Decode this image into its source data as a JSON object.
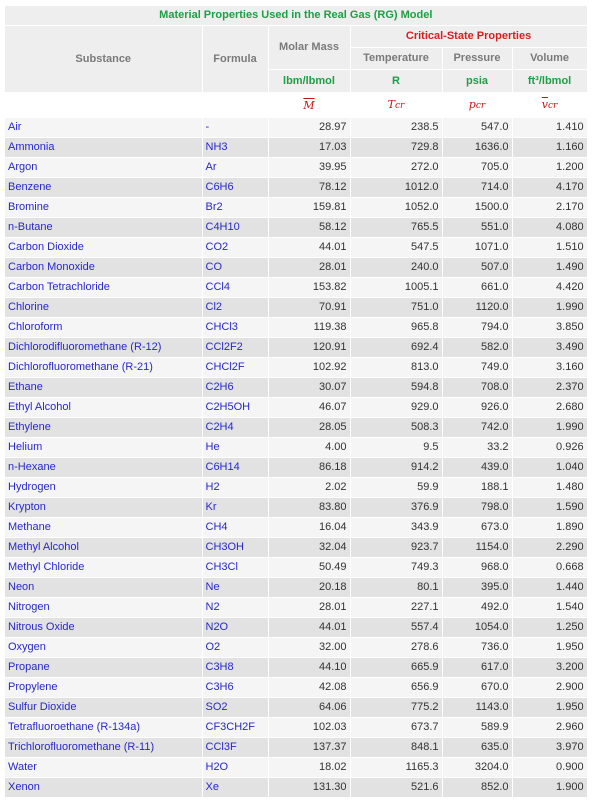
{
  "title": "Material Properties Used in the Real Gas (RG) Model",
  "headers": {
    "substance": "Substance",
    "formula": "Formula",
    "molar_mass": "Molar Mass",
    "critical_state": "Critical-State Properties",
    "temperature": "Temperature",
    "pressure": "Pressure",
    "volume": "Volume"
  },
  "units": {
    "molar_mass": "lbm/lbmol",
    "temperature": "R",
    "pressure": "psia",
    "volume": "ft³/lbmol"
  },
  "symbols": {
    "molar_mass": "M",
    "temperature": "T",
    "pressure": "p",
    "volume": "v",
    "subscript": "cr"
  },
  "rows": [
    {
      "name": "Air",
      "formula": "-",
      "mass": "28.97",
      "t": "238.5",
      "p": "547.0",
      "v": "1.410"
    },
    {
      "name": "Ammonia",
      "formula": "NH3",
      "mass": "17.03",
      "t": "729.8",
      "p": "1636.0",
      "v": "1.160"
    },
    {
      "name": "Argon",
      "formula": "Ar",
      "mass": "39.95",
      "t": "272.0",
      "p": "705.0",
      "v": "1.200"
    },
    {
      "name": "Benzene",
      "formula": "C6H6",
      "mass": "78.12",
      "t": "1012.0",
      "p": "714.0",
      "v": "4.170"
    },
    {
      "name": "Bromine",
      "formula": "Br2",
      "mass": "159.81",
      "t": "1052.0",
      "p": "1500.0",
      "v": "2.170"
    },
    {
      "name": "n-Butane",
      "formula": "C4H10",
      "mass": "58.12",
      "t": "765.5",
      "p": "551.0",
      "v": "4.080"
    },
    {
      "name": "Carbon Dioxide",
      "formula": "CO2",
      "mass": "44.01",
      "t": "547.5",
      "p": "1071.0",
      "v": "1.510"
    },
    {
      "name": "Carbon Monoxide",
      "formula": "CO",
      "mass": "28.01",
      "t": "240.0",
      "p": "507.0",
      "v": "1.490"
    },
    {
      "name": "Carbon Tetrachloride",
      "formula": "CCl4",
      "mass": "153.82",
      "t": "1005.1",
      "p": "661.0",
      "v": "4.420"
    },
    {
      "name": "Chlorine",
      "formula": "Cl2",
      "mass": "70.91",
      "t": "751.0",
      "p": "1120.0",
      "v": "1.990"
    },
    {
      "name": "Chloroform",
      "formula": "CHCl3",
      "mass": "119.38",
      "t": "965.8",
      "p": "794.0",
      "v": "3.850"
    },
    {
      "name": "Dichlorodifluoromethane (R-12)",
      "formula": "CCl2F2",
      "mass": "120.91",
      "t": "692.4",
      "p": "582.0",
      "v": "3.490"
    },
    {
      "name": "Dichlorofluoromethane (R-21)",
      "formula": "CHCl2F",
      "mass": "102.92",
      "t": "813.0",
      "p": "749.0",
      "v": "3.160"
    },
    {
      "name": "Ethane",
      "formula": "C2H6",
      "mass": "30.07",
      "t": "594.8",
      "p": "708.0",
      "v": "2.370"
    },
    {
      "name": "Ethyl Alcohol",
      "formula": "C2H5OH",
      "mass": "46.07",
      "t": "929.0",
      "p": "926.0",
      "v": "2.680"
    },
    {
      "name": "Ethylene",
      "formula": "C2H4",
      "mass": "28.05",
      "t": "508.3",
      "p": "742.0",
      "v": "1.990"
    },
    {
      "name": "Helium",
      "formula": "He",
      "mass": "4.00",
      "t": "9.5",
      "p": "33.2",
      "v": "0.926"
    },
    {
      "name": "n-Hexane",
      "formula": "C6H14",
      "mass": "86.18",
      "t": "914.2",
      "p": "439.0",
      "v": "1.040"
    },
    {
      "name": "Hydrogen",
      "formula": "H2",
      "mass": "2.02",
      "t": "59.9",
      "p": "188.1",
      "v": "1.480"
    },
    {
      "name": "Krypton",
      "formula": "Kr",
      "mass": "83.80",
      "t": "376.9",
      "p": "798.0",
      "v": "1.590"
    },
    {
      "name": "Methane",
      "formula": "CH4",
      "mass": "16.04",
      "t": "343.9",
      "p": "673.0",
      "v": "1.890"
    },
    {
      "name": "Methyl Alcohol",
      "formula": "CH3OH",
      "mass": "32.04",
      "t": "923.7",
      "p": "1154.0",
      "v": "2.290"
    },
    {
      "name": "Methyl Chloride",
      "formula": "CH3Cl",
      "mass": "50.49",
      "t": "749.3",
      "p": "968.0",
      "v": "0.668"
    },
    {
      "name": "Neon",
      "formula": "Ne",
      "mass": "20.18",
      "t": "80.1",
      "p": "395.0",
      "v": "1.440"
    },
    {
      "name": "Nitrogen",
      "formula": "N2",
      "mass": "28.01",
      "t": "227.1",
      "p": "492.0",
      "v": "1.540"
    },
    {
      "name": "Nitrous Oxide",
      "formula": "N2O",
      "mass": "44.01",
      "t": "557.4",
      "p": "1054.0",
      "v": "1.250"
    },
    {
      "name": "Oxygen",
      "formula": "O2",
      "mass": "32.00",
      "t": "278.6",
      "p": "736.0",
      "v": "1.950"
    },
    {
      "name": "Propane",
      "formula": "C3H8",
      "mass": "44.10",
      "t": "665.9",
      "p": "617.0",
      "v": "3.200"
    },
    {
      "name": "Propylene",
      "formula": "C3H6",
      "mass": "42.08",
      "t": "656.9",
      "p": "670.0",
      "v": "2.900"
    },
    {
      "name": "Sulfur Dioxide",
      "formula": "SO2",
      "mass": "64.06",
      "t": "775.2",
      "p": "1143.0",
      "v": "1.950"
    },
    {
      "name": "Tetrafluoroethane (R-134a)",
      "formula": "CF3CH2F",
      "mass": "102.03",
      "t": "673.7",
      "p": "589.9",
      "v": "2.960"
    },
    {
      "name": "Trichlorofluoromethane (R-11)",
      "formula": "CCl3F",
      "mass": "137.37",
      "t": "848.1",
      "p": "635.0",
      "v": "3.970"
    },
    {
      "name": "Water",
      "formula": "H2O",
      "mass": "18.02",
      "t": "1165.3",
      "p": "3204.0",
      "v": "0.900"
    },
    {
      "name": "Xenon",
      "formula": "Xe",
      "mass": "131.30",
      "t": "521.6",
      "p": "852.0",
      "v": "1.900"
    }
  ]
}
